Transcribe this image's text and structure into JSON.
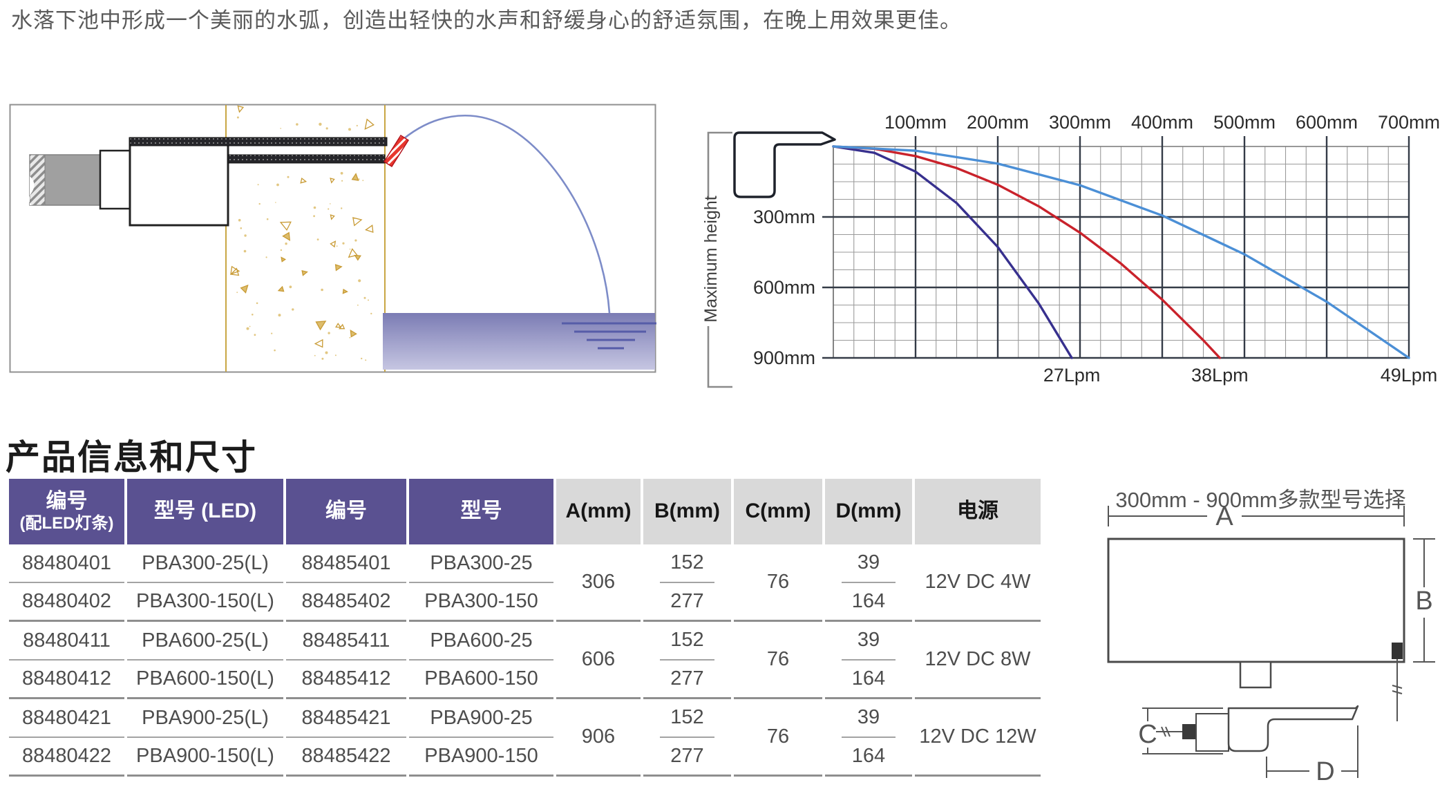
{
  "intro": {
    "text": "水落下池中形成一个美丽的水弧，创造出轻快的水声和舒缓身心的舒适氛围，在晚上用效果更佳。"
  },
  "section_title": "产品信息和尺寸",
  "chart_data": {
    "type": "line",
    "title": "",
    "ylabel": "Maximum height",
    "x_unit": "mm",
    "y_unit": "mm",
    "x_range_mm": [
      0,
      700
    ],
    "y_range_mm": [
      0,
      900
    ],
    "x_minor_step_mm": 25,
    "x_major_step_mm": 100,
    "y_minor_step_mm": 75,
    "y_major_step_mm": 300,
    "grid": true,
    "x_tick_labels": [
      "100mm",
      "200mm",
      "300mm",
      "400mm",
      "500mm",
      "600mm",
      "700mm"
    ],
    "y_tick_labels": [
      "300mm",
      "600mm",
      "900mm"
    ],
    "series": [
      {
        "name": "27Lpm",
        "color": "#37308e",
        "landing_x_mm": 290,
        "points": [
          [
            0,
            0
          ],
          [
            50,
            27
          ],
          [
            100,
            107
          ],
          [
            150,
            241
          ],
          [
            200,
            428
          ],
          [
            250,
            669
          ],
          [
            290,
            900
          ]
        ]
      },
      {
        "name": "38Lpm",
        "color": "#c9222b",
        "landing_x_mm": 470,
        "points": [
          [
            0,
            0
          ],
          [
            50,
            10
          ],
          [
            100,
            41
          ],
          [
            150,
            92
          ],
          [
            200,
            163
          ],
          [
            250,
            255
          ],
          [
            300,
            367
          ],
          [
            350,
            499
          ],
          [
            400,
            652
          ],
          [
            450,
            825
          ],
          [
            470,
            900
          ]
        ]
      },
      {
        "name": "49Lpm",
        "color": "#4b8fd6",
        "landing_x_mm": 700,
        "points": [
          [
            0,
            0
          ],
          [
            100,
            18
          ],
          [
            200,
            73
          ],
          [
            300,
            165
          ],
          [
            400,
            294
          ],
          [
            500,
            459
          ],
          [
            600,
            661
          ],
          [
            700,
            900
          ]
        ]
      }
    ]
  },
  "install_colors": {
    "wall_line": "#c9a643",
    "speckle_stroke": "#c89a33",
    "speckle_fill": "#ddbd6c",
    "pool_top": "#7b7cb4",
    "pool_bottom": "#c6c6e2",
    "water": "#7d8cc8",
    "nozzle_red": "#e8372e"
  },
  "table": {
    "headers": [
      "编号\n(配LED灯条)",
      "型号 (LED)",
      "编号",
      "型号",
      "A(mm)",
      "B(mm)",
      "C(mm)",
      "D(mm)",
      "电源"
    ],
    "groups": [
      {
        "rows": [
          [
            "88480401",
            "PBA300-25(L)",
            "88485401",
            "PBA300-25"
          ],
          [
            "88480402",
            "PBA300-150(L)",
            "88485402",
            "PBA300-150"
          ]
        ],
        "A": "306",
        "B": [
          "152",
          "277"
        ],
        "C": "76",
        "D": [
          "39",
          "164"
        ],
        "power": "12V DC 4W"
      },
      {
        "rows": [
          [
            "88480411",
            "PBA600-25(L)",
            "88485411",
            "PBA600-25"
          ],
          [
            "88480412",
            "PBA600-150(L)",
            "88485412",
            "PBA600-150"
          ]
        ],
        "A": "606",
        "B": [
          "152",
          "277"
        ],
        "C": "76",
        "D": [
          "39",
          "164"
        ],
        "power": "12V DC 8W"
      },
      {
        "rows": [
          [
            "88480421",
            "PBA900-25(L)",
            "88485421",
            "PBA900-25"
          ],
          [
            "88480422",
            "PBA900-150(L)",
            "88485422",
            "PBA900-150"
          ]
        ],
        "A": "906",
        "B": [
          "152",
          "277"
        ],
        "C": "76",
        "D": [
          "39",
          "164"
        ],
        "power": "12V DC 12W"
      }
    ]
  },
  "dimension_diagram": {
    "title": "300mm - 900mm多款型号选择",
    "labels": {
      "A": "A",
      "B": "B",
      "C": "C",
      "D": "D"
    }
  }
}
